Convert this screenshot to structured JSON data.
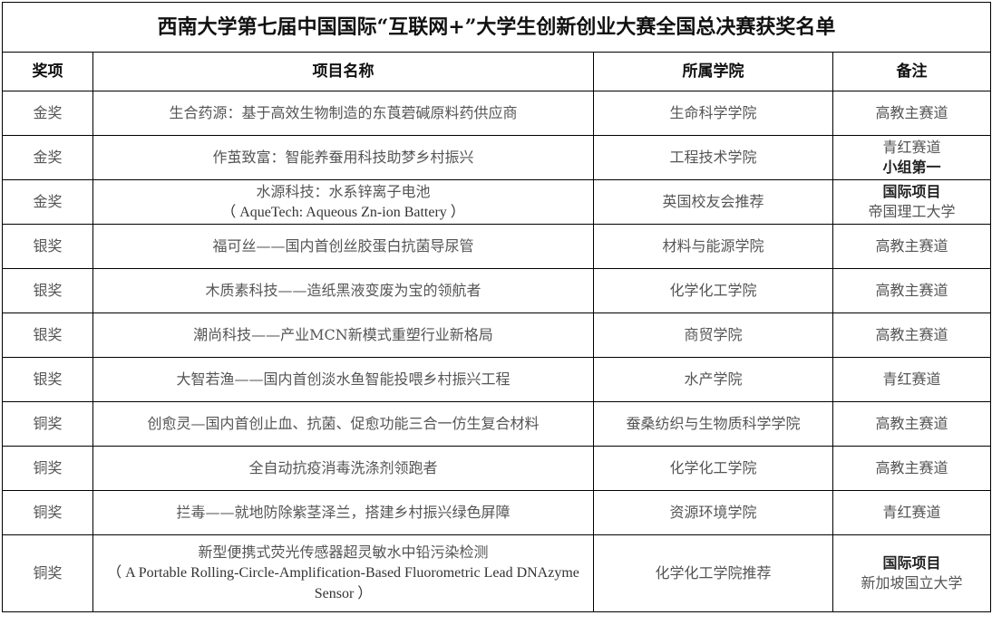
{
  "title": "西南大学第七届中国国际“互联网+”大学生创新创业大赛全国总决赛获奖名单",
  "headers": [
    "奖项",
    "项目名称",
    "所属学院",
    "备注"
  ],
  "rows": [
    {
      "award": "金奖",
      "name": "生合药源：基于高效生物制造的东莨菪碱原料药供应商",
      "name_en": "",
      "college": "生命科学学院",
      "note": "高教主赛道",
      "note2": ""
    },
    {
      "award": "金奖",
      "name": "作茧致富：智能养蚕用科技助梦乡村振兴",
      "name_en": "",
      "college": "工程技术学院",
      "note": "青红赛道",
      "note2": "小组第一"
    },
    {
      "award": "金奖",
      "name": "水源科技：水系锌离子电池",
      "name_en": "（ AqueTech: Aqueous Zn-ion Battery ）",
      "college": "英国校友会推荐",
      "note": "国际项目",
      "note2": "帝国理工大学"
    },
    {
      "award": "银奖",
      "name": "福可丝——国内首创丝胶蛋白抗菌导尿管",
      "name_en": "",
      "college": "材料与能源学院",
      "note": "高教主赛道",
      "note2": ""
    },
    {
      "award": "银奖",
      "name": "木质素科技——造纸黑液变废为宝的领航者",
      "name_en": "",
      "college": "化学化工学院",
      "note": "高教主赛道",
      "note2": ""
    },
    {
      "award": "银奖",
      "name": "潮尚科技——产业MCN新模式重塑行业新格局",
      "name_en": "",
      "college": "商贸学院",
      "note": "高教主赛道",
      "note2": ""
    },
    {
      "award": "银奖",
      "name": "大智若渔——国内首创淡水鱼智能投喂乡村振兴工程",
      "name_en": "",
      "college": "水产学院",
      "note": "青红赛道",
      "note2": ""
    },
    {
      "award": "铜奖",
      "name": "创愈灵—国内首创止血、抗菌、促愈功能三合一仿生复合材料",
      "name_en": "",
      "college": "蚕桑纺织与生物质科学学院",
      "note": "高教主赛道",
      "note2": ""
    },
    {
      "award": "铜奖",
      "name": "全自动抗疫消毒洗涤剂领跑者",
      "name_en": "",
      "college": "化学化工学院",
      "note": "高教主赛道",
      "note2": ""
    },
    {
      "award": "铜奖",
      "name": "拦毒——就地防除紫茎泽兰，搭建乡村振兴绿色屏障",
      "name_en": "",
      "college": "资源环境学院",
      "note": "青红赛道",
      "note2": ""
    },
    {
      "award": "铜奖",
      "name": "新型便携式荧光传感器超灵敏水中铅污染检测",
      "name_en": "（ A Portable Rolling-Circle-Amplification-Based Fluorometric Lead DNAzyme Sensor ）",
      "college": "化学化工学院推荐",
      "note": "国际项目",
      "note2": "新加坡国立大学"
    }
  ]
}
